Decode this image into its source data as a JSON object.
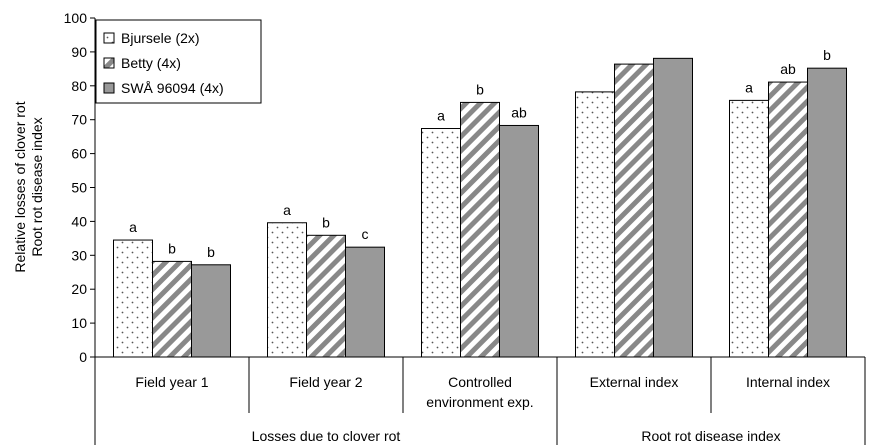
{
  "chart_data": {
    "type": "bar",
    "categories": [
      "Field year 1",
      "Field year 2",
      "Controlled environment exp.",
      "External index",
      "Internal index"
    ],
    "category_lines": [
      [
        "Field year 1"
      ],
      [
        "Field year 2"
      ],
      [
        "Controlled",
        "environment exp."
      ],
      [
        "External index"
      ],
      [
        "Internal index"
      ]
    ],
    "groups": [
      {
        "label": "Losses due to clover rot",
        "categories": [
          "Field year 1",
          "Field year 2",
          "Controlled environment exp."
        ]
      },
      {
        "label": "Root rot disease index",
        "categories": [
          "External index",
          "Internal index"
        ]
      }
    ],
    "series": [
      {
        "name": "Bjursele (2x)",
        "values": [
          34.5,
          39.6,
          67.4,
          78.2,
          75.7
        ],
        "letters": [
          "a",
          "a",
          "a",
          "",
          "a"
        ],
        "pattern": "dots"
      },
      {
        "name": "Betty (4x)",
        "values": [
          28.2,
          35.9,
          75.1,
          86.4,
          81.1
        ],
        "letters": [
          "b",
          "b",
          "b",
          "",
          "ab"
        ],
        "pattern": "hatch"
      },
      {
        "name": "SWÅ 96094 (4x)",
        "values": [
          27.2,
          32.4,
          68.3,
          88.1,
          85.2
        ],
        "letters": [
          "b",
          "c",
          "ab",
          "",
          "b"
        ],
        "pattern": "solid"
      }
    ],
    "ylabel": [
      "Relative losses of clover rot",
      "Root rot disease index"
    ],
    "ylim": [
      0,
      100
    ],
    "yticks": [
      0,
      10,
      20,
      30,
      40,
      50,
      60,
      70,
      80,
      90,
      100
    ],
    "grid": false,
    "legend_position": "top-left",
    "colors": {
      "solid": "#999999",
      "hatch": "#888888",
      "dots": "#555555"
    }
  }
}
